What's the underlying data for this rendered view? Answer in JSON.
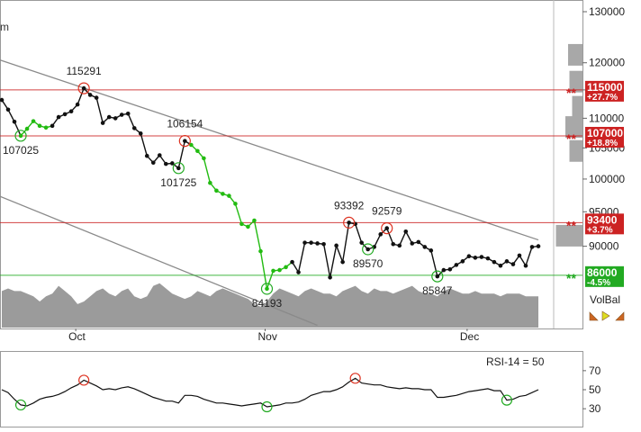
{
  "chart_data": {
    "type": "line",
    "title": "",
    "x_month_labels": [
      "Oct",
      "Nov",
      "Dec"
    ],
    "y_axis": {
      "ticks": [
        90000,
        95000,
        100000,
        105000,
        110000,
        115000,
        120000,
        130000
      ],
      "min": 79000,
      "max": 130000,
      "log_scale": true
    },
    "price": {
      "x": [
        0,
        1,
        2,
        3,
        4,
        5,
        6,
        7,
        8,
        9,
        10,
        11,
        12,
        13,
        14,
        15,
        16,
        17,
        18,
        19,
        20,
        21,
        22,
        23,
        24,
        25,
        26,
        27,
        28,
        29,
        30,
        31,
        32,
        33,
        34,
        35,
        36,
        37,
        38,
        39,
        40,
        41,
        42,
        43,
        44,
        45,
        46,
        47,
        48,
        49,
        50,
        51,
        52,
        53,
        54,
        55,
        56,
        57,
        58,
        59,
        60,
        61,
        62,
        63,
        64,
        65,
        66,
        67,
        68,
        69,
        70,
        71,
        72,
        73,
        74,
        75,
        76,
        77,
        78,
        79,
        80,
        81,
        82,
        83,
        84,
        85
      ],
      "values": [
        113200,
        111500,
        109400,
        107025,
        108200,
        109500,
        108700,
        108400,
        108700,
        110200,
        110700,
        111200,
        112400,
        115291,
        114100,
        113600,
        109200,
        110200,
        110000,
        110600,
        110800,
        108300,
        107400,
        103700,
        102600,
        103800,
        102400,
        102500,
        101725,
        106154,
        105500,
        104500,
        103300,
        99400,
        98200,
        97700,
        97400,
        96200,
        93200,
        92800,
        93700,
        89300,
        84193,
        86600,
        86700,
        87100,
        87800,
        86400,
        90500,
        90500,
        90400,
        90300,
        85700,
        90100,
        87800,
        93392,
        93200,
        90500,
        89570,
        89900,
        91700,
        92579,
        90300,
        90100,
        92100,
        90400,
        90600,
        89900,
        89400,
        85847,
        86700,
        86800,
        87400,
        87900,
        88600,
        88400,
        88500,
        88300,
        87800,
        87300,
        87900,
        87500,
        88700,
        87300,
        89900,
        90000
      ],
      "marked_extremes": [
        {
          "label": "115291",
          "value": 115291,
          "kind": "high"
        },
        {
          "label": "107025",
          "value": 107025,
          "kind": "low"
        },
        {
          "label": "106154",
          "value": 106154,
          "kind": "high"
        },
        {
          "label": "101725",
          "value": 101725,
          "kind": "low"
        },
        {
          "label": "84193",
          "value": 84193,
          "kind": "low"
        },
        {
          "label": "93392",
          "value": 93392,
          "kind": "high"
        },
        {
          "label": "89570",
          "value": 89570,
          "kind": "low"
        },
        {
          "label": "92579",
          "value": 92579,
          "kind": "high"
        },
        {
          "label": "85847",
          "value": 85847,
          "kind": "low"
        }
      ]
    },
    "levels": [
      {
        "value": 115000,
        "price_label": "115000",
        "change_label": "+27.7%",
        "color": "#cc2222",
        "marker": "**"
      },
      {
        "value": 107000,
        "price_label": "107000",
        "change_label": "+18.8%",
        "color": "#cc2222",
        "marker": "**"
      },
      {
        "value": 93400,
        "price_label": "93400",
        "change_label": "+3.7%",
        "color": "#cc2222",
        "marker": "**"
      },
      {
        "value": 86000,
        "price_label": "86000",
        "change_label": "-4.5%",
        "color": "#22aa22",
        "marker": "**"
      }
    ],
    "trend_channel": {
      "upper": [
        {
          "x": -2,
          "value": 121200
        },
        {
          "x": 85,
          "value": 90900
        }
      ],
      "lower": [
        {
          "x": -2,
          "value": 98000
        },
        {
          "x": 50,
          "value": 79500
        }
      ]
    },
    "volume_balance": [
      14,
      15,
      14,
      14,
      13,
      12,
      10,
      12,
      13,
      16,
      14,
      12,
      9,
      10,
      12,
      14,
      15,
      13,
      12,
      14,
      15,
      12,
      11,
      12,
      16,
      17,
      15,
      13,
      12,
      11,
      12,
      14,
      13,
      12,
      14,
      15,
      14,
      13,
      12,
      11,
      9,
      8,
      10,
      13,
      15,
      14,
      13,
      12,
      14,
      15,
      14,
      13,
      13,
      12,
      14,
      15,
      16,
      14,
      13,
      15,
      14,
      14,
      13,
      14,
      15,
      16,
      14,
      13,
      13,
      12,
      14,
      15,
      14,
      13,
      13,
      14,
      13,
      13,
      13,
      12,
      13,
      13,
      13,
      12,
      12,
      12
    ],
    "volbal_label": "VolBal",
    "volume_profile": [
      {
        "value": 121500,
        "strength": 0.4
      },
      {
        "value": 116500,
        "strength": 0.35
      },
      {
        "value": 112000,
        "strength": 0.25
      },
      {
        "value": 108500,
        "strength": 0.5
      },
      {
        "value": 104500,
        "strength": 0.35
      },
      {
        "value": 91500,
        "strength": 0.85
      }
    ],
    "rsi": {
      "label": "RSI-14 = 50",
      "ticks": [
        30,
        50,
        70
      ],
      "min": 15,
      "max": 85,
      "values": [
        50,
        47,
        40,
        34,
        33,
        36,
        40,
        42,
        43,
        45,
        48,
        52,
        55,
        60,
        57,
        54,
        50,
        51,
        50,
        52,
        53,
        51,
        48,
        45,
        42,
        40,
        38,
        38,
        36,
        44,
        44,
        43,
        40,
        38,
        36,
        36,
        35,
        34,
        33,
        34,
        35,
        36,
        32,
        33,
        34,
        36,
        36,
        37,
        40,
        44,
        46,
        48,
        48,
        50,
        53,
        58,
        62,
        57,
        56,
        55,
        55,
        53,
        52,
        51,
        52,
        51,
        51,
        50,
        50,
        42,
        42,
        43,
        44,
        46,
        48,
        49,
        50,
        51,
        49,
        49,
        39,
        40,
        43,
        44,
        47,
        50
      ],
      "marked": [
        {
          "index": 3,
          "kind": "low"
        },
        {
          "index": 13,
          "kind": "high"
        },
        {
          "index": 42,
          "kind": "low"
        },
        {
          "index": 56,
          "kind": "high"
        },
        {
          "index": 80,
          "kind": "low"
        }
      ]
    },
    "top_left_fragment": "m"
  }
}
